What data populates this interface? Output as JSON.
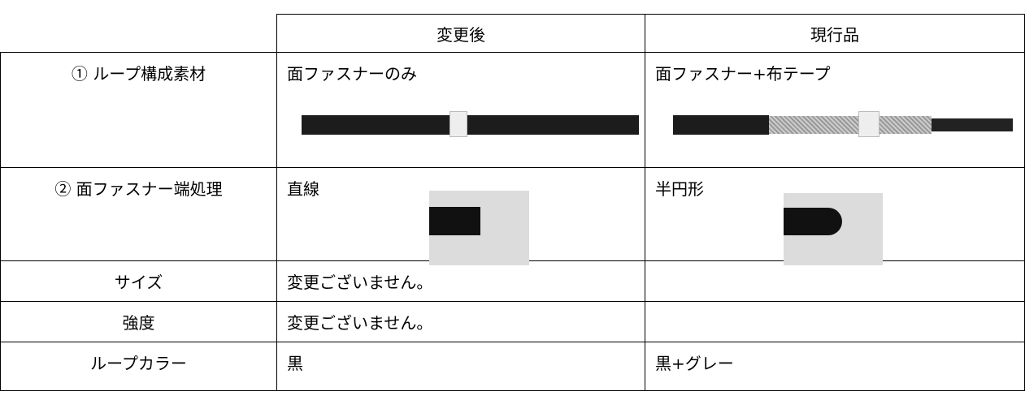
{
  "table": {
    "header": [
      "",
      "変更後",
      "現行品"
    ],
    "rows": [
      [
        "① ループ構成素材",
        "面ファスナーのみ",
        "面ファスナー+布テープ"
      ],
      [
        "② 面ファスナー端処理",
        "直線",
        "半円形"
      ],
      [
        "サイズ",
        "変更ございません。",
        ""
      ],
      [
        "強度",
        "変更ございません。",
        ""
      ],
      [
        "ループカラー",
        "黒",
        "黒+グレー"
      ]
    ]
  }
}
